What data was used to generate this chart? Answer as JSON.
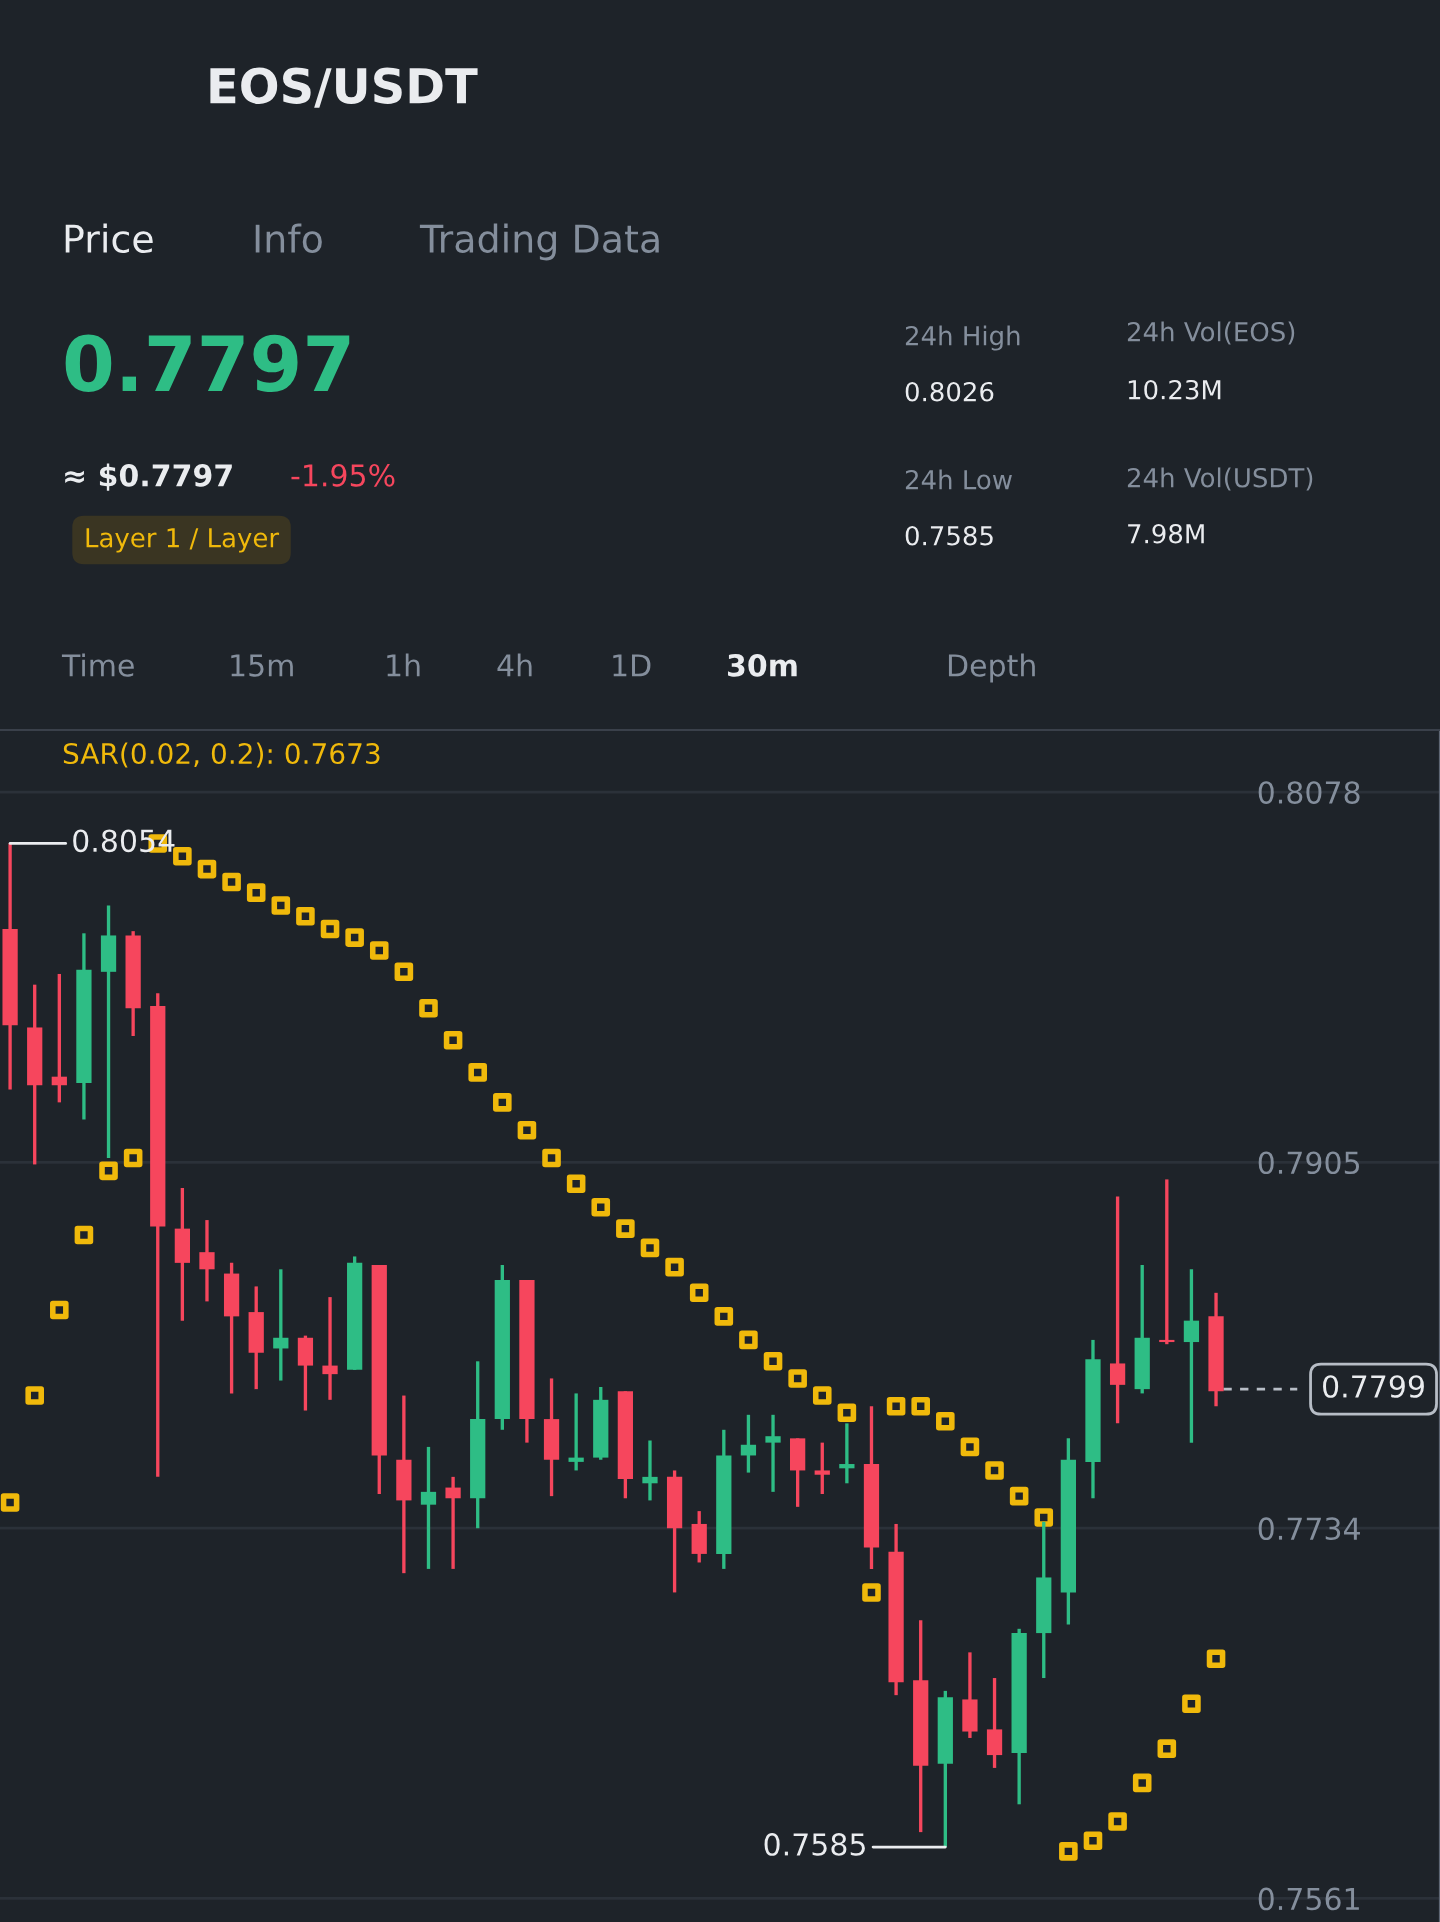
{
  "chart_data": {
    "type": "candlestick",
    "title": "EOS/USDT",
    "annotations": [
      "Price",
      "Info",
      "Trading Data",
      "0.7797",
      "≈ $0.7797",
      "-1.95%",
      "Layer 1 / Layer",
      "24h High",
      "0.8026",
      "24h Vol(EOS)",
      "10.23M",
      "24h Low",
      "0.7585",
      "24h Vol(USDT)",
      "7.98M",
      "Time",
      "15m",
      "1h",
      "4h",
      "1D",
      "30m",
      "Depth",
      "0.8054",
      "0.7585"
    ],
    "categories": [
      null,
      null,
      null,
      null,
      null,
      null,
      null,
      null,
      null,
      null,
      null,
      null,
      null,
      null,
      null,
      null,
      null,
      null,
      null,
      null,
      null,
      null,
      null,
      null,
      null,
      null,
      null,
      null,
      null,
      null,
      null,
      null,
      null,
      null,
      null,
      null,
      null,
      null,
      null,
      null,
      null,
      null,
      null,
      null,
      null,
      null,
      null,
      null,
      null,
      null
    ],
    "ohlc": [
      [
        0.8014,
        0.8054,
        0.7939,
        0.7969
      ],
      [
        0.7968,
        0.7988,
        0.7904,
        0.7941
      ],
      [
        0.7945,
        0.7993,
        0.7933,
        0.7941
      ],
      [
        0.7942,
        0.8012,
        0.7925,
        0.7995
      ],
      [
        0.7994,
        0.8025,
        0.7907,
        0.8011
      ],
      [
        0.8011,
        0.8013,
        0.7964,
        0.7977
      ],
      [
        0.7978,
        0.7984,
        0.7758,
        0.7875
      ],
      [
        0.7874,
        0.7893,
        0.7831,
        0.7858
      ],
      [
        0.7863,
        0.7878,
        0.784,
        0.7855
      ],
      [
        0.7853,
        0.7858,
        0.7797,
        0.7833
      ],
      [
        0.7835,
        0.7847,
        0.7799,
        0.7816
      ],
      [
        0.7818,
        0.7855,
        0.7803,
        0.7823
      ],
      [
        0.7823,
        0.7824,
        0.7789,
        0.781
      ],
      [
        0.781,
        0.7842,
        0.7794,
        0.7806
      ],
      [
        0.7808,
        0.7861,
        0.7808,
        0.7858
      ],
      [
        0.7857,
        0.7857,
        0.775,
        0.7768
      ],
      [
        0.7766,
        0.7796,
        0.7713,
        0.7747
      ],
      [
        0.7745,
        0.7772,
        0.7715,
        0.7751
      ],
      [
        0.7753,
        0.7758,
        0.7715,
        0.7748
      ],
      [
        0.7748,
        0.7812,
        0.7734,
        0.7785
      ],
      [
        0.7785,
        0.7857,
        0.778,
        0.785
      ],
      [
        0.785,
        0.785,
        0.7774,
        0.7785
      ],
      [
        0.7785,
        0.7804,
        0.7749,
        0.7766
      ],
      [
        0.7765,
        0.7797,
        0.7761,
        0.7767
      ],
      [
        0.7767,
        0.78,
        0.7766,
        0.7794
      ],
      [
        0.7798,
        0.7798,
        0.7748,
        0.7757
      ],
      [
        0.7755,
        0.7775,
        0.7747,
        0.7758
      ],
      [
        0.7758,
        0.7761,
        0.7704,
        0.7734
      ],
      [
        0.7736,
        0.7742,
        0.7718,
        0.7722
      ],
      [
        0.7722,
        0.778,
        0.7715,
        0.7768
      ],
      [
        0.7768,
        0.7787,
        0.776,
        0.7773
      ],
      [
        0.7774,
        0.7787,
        0.7751,
        0.7777
      ],
      [
        0.7776,
        0.7776,
        0.7744,
        0.7761
      ],
      [
        0.7761,
        0.7774,
        0.775,
        0.7759
      ],
      [
        0.7762,
        0.7783,
        0.7755,
        0.7764
      ],
      [
        0.7764,
        0.7791,
        0.7715,
        0.7725
      ],
      [
        0.7723,
        0.7736,
        0.7656,
        0.7662
      ],
      [
        0.7663,
        0.7691,
        0.7592,
        0.7623
      ],
      [
        0.7624,
        0.7658,
        0.7585,
        0.7655
      ],
      [
        0.7654,
        0.7676,
        0.7636,
        0.7639
      ],
      [
        0.764,
        0.7664,
        0.7622,
        0.7628
      ],
      [
        0.7629,
        0.7687,
        0.7605,
        0.7685
      ],
      [
        0.7685,
        0.7737,
        0.7664,
        0.7711
      ],
      [
        0.7704,
        0.7776,
        0.7689,
        0.7766
      ],
      [
        0.7765,
        0.7822,
        0.7748,
        0.7813
      ],
      [
        0.7811,
        0.7889,
        0.7783,
        0.7801
      ],
      [
        0.7799,
        0.7857,
        0.7797,
        0.7823
      ],
      [
        0.7822,
        0.7897,
        0.782,
        0.7821
      ],
      [
        0.7821,
        0.7855,
        0.7774,
        0.7831
      ],
      [
        0.7833,
        0.7844,
        0.7791,
        0.7798
      ]
    ],
    "colors": [
      "#f6465d",
      "#f6465d",
      "#f6465d",
      "#2ebd85",
      "#2ebd85",
      "#f6465d",
      "#f6465d",
      "#f6465d",
      "#f6465d",
      "#f6465d",
      "#f6465d",
      "#2ebd85",
      "#f6465d",
      "#f6465d",
      "#2ebd85",
      "#f6465d",
      "#f6465d",
      "#2ebd85",
      "#f6465d",
      "#2ebd85",
      "#2ebd85",
      "#f6465d",
      "#f6465d",
      "#2ebd85",
      "#2ebd85",
      "#f6465d",
      "#2ebd85",
      "#f6465d",
      "#f6465d",
      "#2ebd85",
      "#2ebd85",
      "#2ebd85",
      "#f6465d",
      "#f6465d",
      "#2ebd85",
      "#f6465d",
      "#f6465d",
      "#f6465d",
      "#2ebd85",
      "#f6465d",
      "#f6465d",
      "#2ebd85",
      "#2ebd85",
      "#2ebd85",
      "#2ebd85",
      "#f6465d",
      "#2ebd85",
      "#f6465d",
      "#2ebd85",
      "#f6465d"
    ],
    "series": [
      {
        "name": "SAR(0.02, 0.2): 0.7673",
        "type": "scatter",
        "color": "#f0b90b",
        "values": [
          0.7746,
          0.7796,
          0.7836,
          0.7871,
          0.7901,
          0.7907,
          0.8054,
          0.8048,
          0.8042,
          0.8036,
          0.8031,
          0.8025,
          0.802,
          0.8014,
          0.801,
          0.8004,
          0.7994,
          0.7977,
          0.7962,
          0.7947,
          0.7933,
          0.792,
          0.7907,
          0.7895,
          0.7884,
          0.7874,
          0.7865,
          0.7856,
          0.7844,
          0.7833,
          0.7822,
          0.7812,
          0.7804,
          0.7796,
          0.7788,
          0.7704,
          0.7791,
          0.7791,
          0.7784,
          0.7772,
          0.7761,
          0.7749,
          0.7739,
          0.7583,
          0.7588,
          0.7597,
          0.7615,
          0.7631,
          0.7652,
          0.7673
        ]
      }
    ],
    "marker": "square",
    "ref_lines": [
      {
        "axis": "y",
        "value": 0.7799,
        "label": "0.7799",
        "line_style": "dashed",
        "color": "#b7bdc6"
      }
    ],
    "ylim": [
      0.755,
      0.8107
    ],
    "yticks": [
      0.8078,
      0.7905,
      0.7734,
      0.7561
    ],
    "grid": "y"
  }
}
